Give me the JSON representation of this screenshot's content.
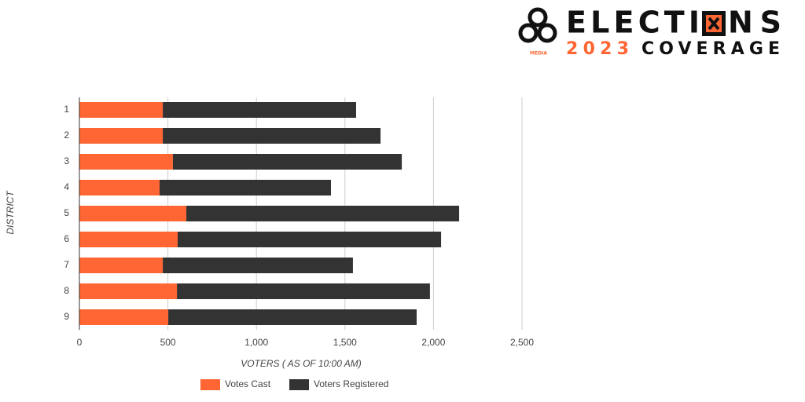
{
  "header": {
    "brand_top": "ELECTI",
    "brand_end": "NS",
    "year": "2023",
    "coverage": "COVERAGE",
    "media": "MEDIA"
  },
  "chart_data": {
    "type": "stacked-barh",
    "categories": [
      "1",
      "2",
      "3",
      "4",
      "5",
      "6",
      "7",
      "8",
      "9"
    ],
    "series": [
      {
        "name": "Votes Cast",
        "color": "#ff6633",
        "values": [
          471,
          471,
          528,
          453,
          604,
          555,
          471,
          551,
          502
        ]
      },
      {
        "name": "Voters Registered",
        "color": "#333333",
        "values": [
          1092,
          1230,
          1293,
          968,
          1541,
          1488,
          1074,
          1429,
          1403
        ]
      }
    ],
    "xlim": [
      0,
      2500
    ],
    "xticks": [
      0,
      500,
      {
        "value": 1000,
        "label": "1,000"
      },
      {
        "value": 1500,
        "label": "1,500"
      },
      {
        "value": 2000,
        "label": "2,000"
      },
      {
        "value": 2500,
        "label": "2,500"
      }
    ],
    "xlabel": "VOTERS ( AS OF 10:00 AM)",
    "ylabel": "DISTRICT",
    "grid": true,
    "legend": "bottom"
  }
}
